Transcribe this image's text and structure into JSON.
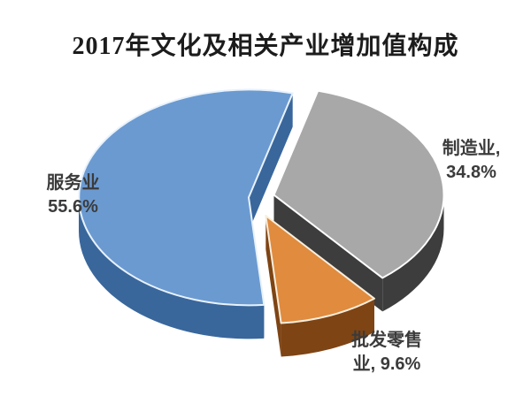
{
  "page": {
    "background": "#ffffff"
  },
  "chart_data": {
    "type": "pie",
    "style": "3d-exploded",
    "title": "2017年文化及相关产业增加值构成",
    "unit": "%",
    "legend_position": "none",
    "labels_on_chart": true,
    "start_angle_deg": 15,
    "slices": [
      {
        "name": "manufacturing",
        "label": "制造业",
        "value": 34.8,
        "color": "#a8a8a8",
        "side_color": "#3d3d3d",
        "edge_color": "#ffffff"
      },
      {
        "name": "wholesale-retail",
        "label": "批发零售业",
        "value": 9.6,
        "color": "#e08b3e",
        "side_color": "#7e4414",
        "edge_color": "#f8eedd"
      },
      {
        "name": "services",
        "label": "服务业",
        "value": 55.6,
        "color": "#6b9ad1",
        "side_color": "#39679c",
        "edge_color": "#e8f2fb"
      }
    ]
  },
  "labels": {
    "services": {
      "line1": "服务业",
      "line2": "55.6%"
    },
    "manufacturing": {
      "line1": "制造业,",
      "line2": "34.8%"
    },
    "wholesale": {
      "line1": "批发零售",
      "line2": "业, 9.6%"
    }
  }
}
